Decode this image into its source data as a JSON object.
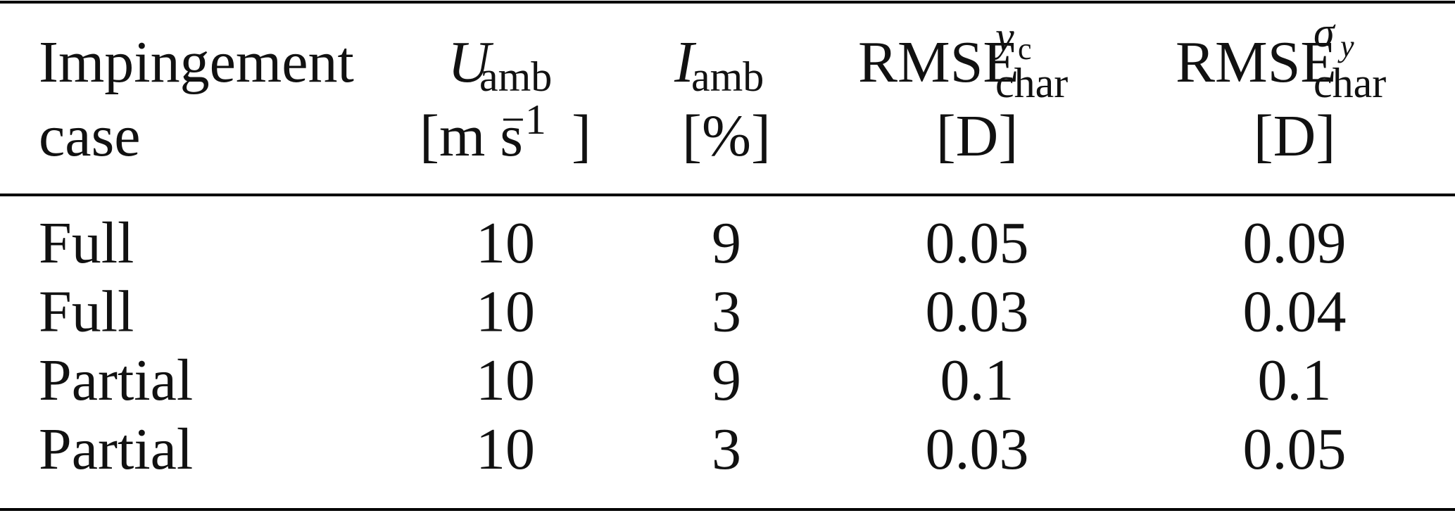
{
  "header": {
    "case": [
      "Impingement",
      "case"
    ],
    "u_amb": {
      "symbol": "U",
      "sub": "amb",
      "unit_open": "[m s",
      "unit_sup": "−1",
      "unit_close": "]"
    },
    "i_amb": {
      "symbol": "I",
      "sub": "amb",
      "unit": "[%]"
    },
    "rmse_yc": {
      "base": "RMSE",
      "sup_symbol": "y",
      "sup_sub": "c",
      "sub": "char",
      "unit": "[D]"
    },
    "rmse_sigma": {
      "base": "RMSE",
      "sup_symbol": "σ",
      "sup_sub": "y",
      "sub": "char",
      "unit": "[D]"
    }
  },
  "table": {
    "rows": [
      [
        "Full",
        10,
        9,
        0.05,
        0.09
      ],
      [
        "Full",
        10,
        3,
        0.03,
        0.04
      ],
      [
        "Partial",
        10,
        9,
        0.1,
        0.1
      ],
      [
        "Partial",
        10,
        3,
        0.03,
        0.05
      ]
    ]
  }
}
